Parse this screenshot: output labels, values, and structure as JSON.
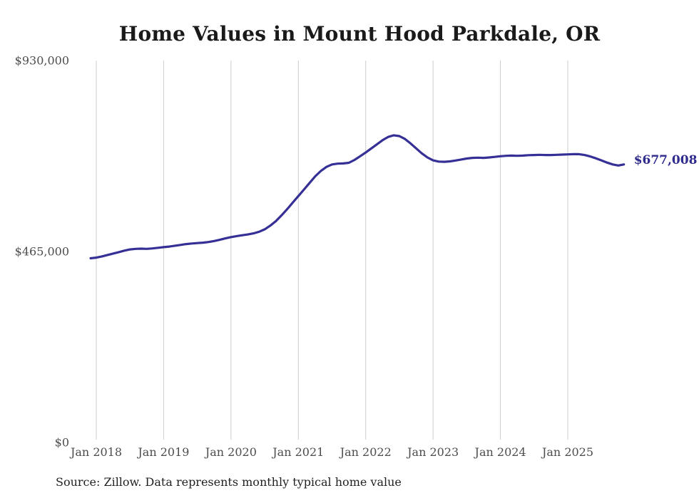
{
  "title": "Home Values in Mount Hood Parkdale, OR",
  "source_note": "Source: Zillow. Data represents monthly typical home value",
  "colors": {
    "line": "#352f96",
    "end_label": "#2f2a8d",
    "grid": "#cccccc",
    "title_text": "#1a1a1a",
    "axis_text": "#4d4d4d",
    "source_text": "#1f1f1f",
    "background": "#ffffff"
  },
  "chart_data": {
    "type": "line",
    "title": "Home Values in Mount Hood Parkdale, OR",
    "xlabel": "",
    "ylabel": "",
    "ylim": [
      0,
      930000
    ],
    "grid": "vertical-only",
    "legend": "none",
    "end_label": "$677,008",
    "end_value": 677008,
    "y_ticks": [
      {
        "label": "$930,000",
        "value": 930000
      },
      {
        "label": "$465,000",
        "value": 465000
      },
      {
        "label": "$0",
        "value": 0
      }
    ],
    "x_ticks": [
      {
        "label": "Jan 2018",
        "month_index": 1
      },
      {
        "label": "Jan 2019",
        "month_index": 13
      },
      {
        "label": "Jan 2020",
        "month_index": 25
      },
      {
        "label": "Jan 2021",
        "month_index": 37
      },
      {
        "label": "Jan 2022",
        "month_index": 49
      },
      {
        "label": "Jan 2023",
        "month_index": 61
      },
      {
        "label": "Jan 2024",
        "month_index": 73
      },
      {
        "label": "Jan 2025",
        "month_index": 85
      }
    ],
    "series": [
      {
        "name": "Monthly typical home value",
        "months": [
          "2017-12",
          "2018-01",
          "2018-02",
          "2018-03",
          "2018-04",
          "2018-05",
          "2018-06",
          "2018-07",
          "2018-08",
          "2018-09",
          "2018-10",
          "2018-11",
          "2018-12",
          "2019-01",
          "2019-02",
          "2019-03",
          "2019-04",
          "2019-05",
          "2019-06",
          "2019-07",
          "2019-08",
          "2019-09",
          "2019-10",
          "2019-11",
          "2019-12",
          "2020-01",
          "2020-02",
          "2020-03",
          "2020-04",
          "2020-05",
          "2020-06",
          "2020-07",
          "2020-08",
          "2020-09",
          "2020-10",
          "2020-11",
          "2020-12",
          "2021-01",
          "2021-02",
          "2021-03",
          "2021-04",
          "2021-05",
          "2021-06",
          "2021-07",
          "2021-08",
          "2021-09",
          "2021-10",
          "2021-11",
          "2021-12",
          "2022-01",
          "2022-02",
          "2022-03",
          "2022-04",
          "2022-05",
          "2022-06",
          "2022-07",
          "2022-08",
          "2022-09",
          "2022-10",
          "2022-11",
          "2022-12",
          "2023-01",
          "2023-02",
          "2023-03",
          "2023-04",
          "2023-05",
          "2023-06",
          "2023-07",
          "2023-08",
          "2023-09",
          "2023-10",
          "2023-11",
          "2023-12",
          "2024-01",
          "2024-02",
          "2024-03",
          "2024-04",
          "2024-05",
          "2024-06",
          "2024-07",
          "2024-08",
          "2024-09",
          "2024-10",
          "2024-11",
          "2024-12",
          "2025-01",
          "2025-02",
          "2025-03",
          "2025-04",
          "2025-05",
          "2025-06",
          "2025-07",
          "2025-08",
          "2025-09",
          "2025-10",
          "2025-11"
        ],
        "values": [
          448500,
          450000,
          453000,
          456500,
          460000,
          463500,
          467000,
          470000,
          471500,
          472000,
          471500,
          472500,
          474000,
          475500,
          477000,
          479000,
          481000,
          483000,
          484500,
          485500,
          486500,
          488000,
          490500,
          493500,
          497000,
          500000,
          502500,
          504500,
          506500,
          509000,
          513000,
          519000,
          528000,
          539000,
          553000,
          568000,
          584000,
          600000,
          616000,
          632000,
          648000,
          661000,
          671000,
          677000,
          679000,
          679500,
          681000,
          688000,
          697000,
          706000,
          716000,
          726000,
          736000,
          744000,
          748000,
          746000,
          739000,
          728000,
          716000,
          704000,
          694000,
          687000,
          684000,
          683500,
          684500,
          686500,
          689000,
          691500,
          693000,
          693500,
          693000,
          694000,
          695500,
          697000,
          698000,
          698500,
          698000,
          698500,
          699500,
          700000,
          700500,
          700000,
          700000,
          700500,
          701000,
          701500,
          702000,
          702000,
          700000,
          696500,
          692000,
          687000,
          681500,
          677000,
          674500,
          677008
        ]
      }
    ]
  }
}
